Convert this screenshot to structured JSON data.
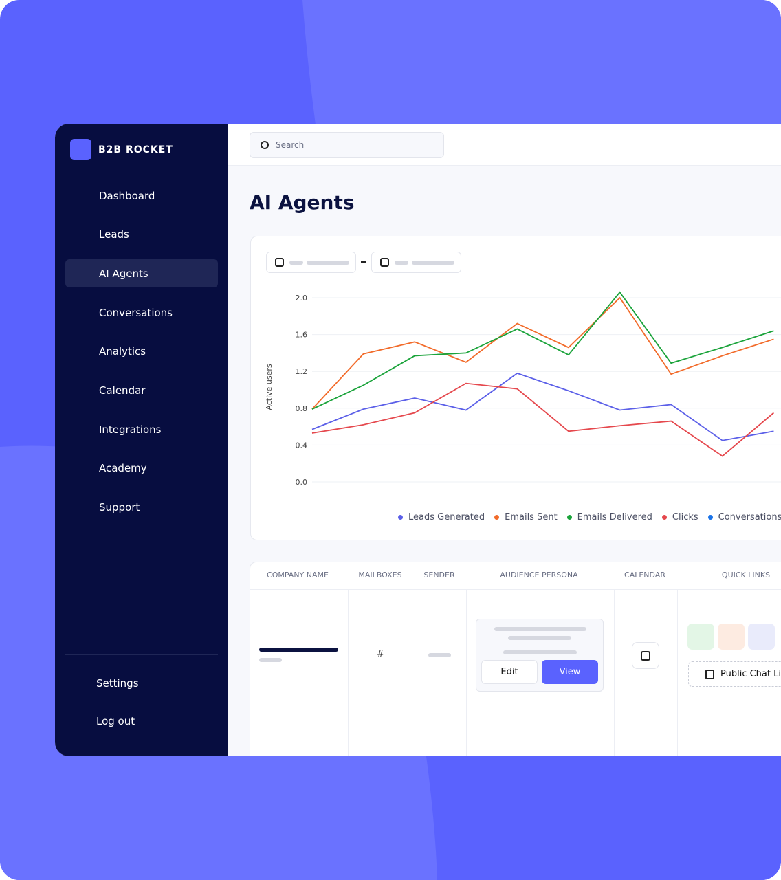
{
  "brand": "B2B ROCKET",
  "nav": [
    "Dashboard",
    "Leads",
    "AI Agents",
    "Conversations",
    "Analytics",
    "Calendar",
    "Integrations",
    "Academy",
    "Support"
  ],
  "nav_footer": [
    "Settings",
    "Log out"
  ],
  "search": "Search",
  "page_title": "AI Agents",
  "chart_data": {
    "type": "line",
    "y_label": "Active users",
    "categories": [
      null,
      null,
      null,
      null,
      null,
      null,
      null,
      null,
      null,
      null
    ],
    "ylim": [
      0,
      2.0
    ],
    "yticks": [
      {
        "value": 0,
        "label": "0.0"
      },
      {
        "value": 0.4,
        "label": "0.4"
      },
      {
        "value": 0.8,
        "label": "0.8"
      },
      {
        "value": 1.2,
        "label": "1.2"
      },
      {
        "value": 1.6,
        "label": "1.6"
      },
      {
        "value": 2.0,
        "label": "2.0"
      }
    ],
    "grid": true,
    "series": [
      {
        "name": "Leads Generated",
        "color": "#5b5fe8",
        "values": [
          0.57,
          0.79,
          0.91,
          0.78,
          1.18,
          0.99,
          0.78,
          0.84,
          0.45,
          0.55
        ]
      },
      {
        "name": "Emails Sent",
        "color": "#f26b2a",
        "values": [
          0.79,
          1.39,
          1.52,
          1.3,
          1.72,
          1.46,
          2.0,
          1.17,
          1.37,
          1.55
        ]
      },
      {
        "name": "Emails Delivered",
        "color": "#1aa33a",
        "values": [
          0.79,
          1.05,
          1.37,
          1.4,
          1.66,
          1.38,
          2.06,
          1.29,
          1.46,
          1.64
        ]
      },
      {
        "name": "Clicks",
        "color": "#e5484d",
        "values": [
          0.53,
          0.62,
          0.75,
          1.07,
          1.01,
          0.55,
          0.61,
          0.66,
          0.28,
          0.75
        ]
      },
      {
        "name": "Conversations",
        "color": "#1a73e8",
        "values": [
          null,
          null,
          null,
          null,
          null,
          null,
          null,
          null,
          null,
          null
        ]
      }
    ]
  },
  "table": {
    "headers": [
      "COMPANY NAME",
      "MAILBOXES",
      "SENDER",
      "AUDIENCE PERSONA",
      "CALENDAR",
      "QUICK LINKS"
    ],
    "rows": [
      {
        "mailboxes": "#",
        "edit": "Edit",
        "view": "View",
        "link": "Public Chat Link"
      }
    ]
  }
}
